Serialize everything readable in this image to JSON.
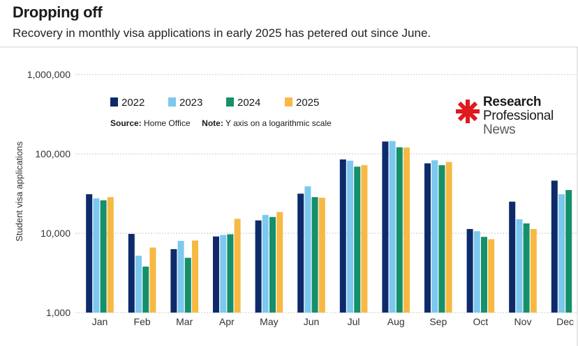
{
  "header": {
    "title": "Dropping off",
    "subtitle": "Recovery in monthly visa applications in early 2025 has petered out since June."
  },
  "source_note": {
    "source_label": "Source:",
    "source_value": "Home Office",
    "note_label": "Note:",
    "note_value": "Y axis on a logarithmic scale"
  },
  "logo": {
    "line1": "Research",
    "line2": "Professional",
    "line3": "News",
    "asterisk_color": "#e0191f",
    "icon": "asterisk-icon"
  },
  "chart_data": {
    "type": "bar",
    "ylabel": "Student visa applications",
    "xlabel": "",
    "yscale": "log",
    "ylim": [
      1000,
      1000000
    ],
    "yticks": [
      1000,
      10000,
      100000,
      1000000
    ],
    "ytick_labels": [
      "1,000",
      "10,000",
      "100,000",
      "1,000,000"
    ],
    "grid": "horizontal-dotted",
    "legend_position": "top-left",
    "categories": [
      "Jan",
      "Feb",
      "Mar",
      "Apr",
      "May",
      "Jun",
      "Jul",
      "Aug",
      "Sep",
      "Oct",
      "Nov",
      "Dec"
    ],
    "series": [
      {
        "name": "2022",
        "color": "#0d2b6b",
        "values": [
          31000,
          9800,
          6300,
          9100,
          14500,
          31500,
          85000,
          143000,
          76000,
          11300,
          25000,
          46000
        ]
      },
      {
        "name": "2023",
        "color": "#7cc8ee",
        "values": [
          27500,
          5200,
          8000,
          9500,
          17000,
          39000,
          82000,
          145000,
          83000,
          10600,
          15000,
          31000
        ]
      },
      {
        "name": "2024",
        "color": "#15906a",
        "values": [
          26000,
          3800,
          4900,
          9700,
          16000,
          28500,
          69000,
          121000,
          72000,
          9000,
          13300,
          35000
        ]
      },
      {
        "name": "2025",
        "color": "#f7b944",
        "values": [
          28500,
          6600,
          8100,
          15200,
          18500,
          28000,
          72000,
          120000,
          79000,
          8400,
          11300,
          null
        ]
      }
    ]
  }
}
